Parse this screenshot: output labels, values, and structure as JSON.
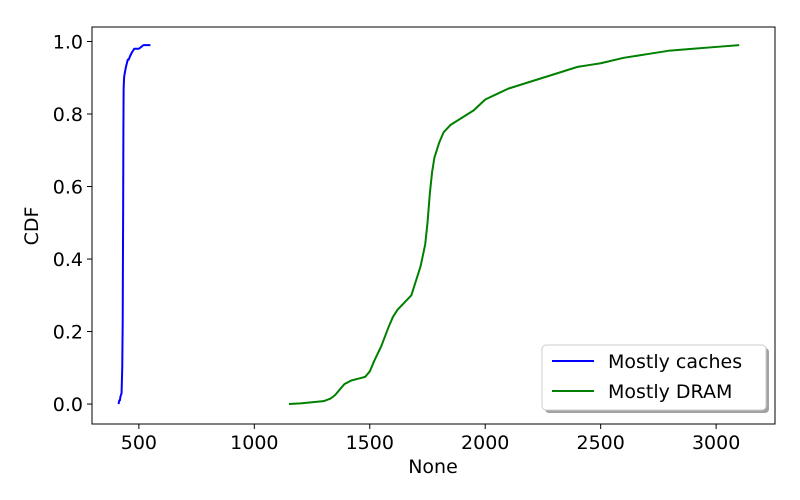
{
  "chart_data": {
    "type": "line",
    "title": "",
    "xlabel": "None",
    "ylabel": "CDF",
    "xlim": [
      297,
      3255
    ],
    "ylim": [
      -0.055,
      1.04
    ],
    "xticks": [
      500,
      1000,
      1500,
      2000,
      2500,
      3000
    ],
    "yticks": [
      0.0,
      0.2,
      0.4,
      0.6,
      0.8,
      1.0
    ],
    "xtick_labels": [
      "500",
      "1000",
      "1500",
      "2000",
      "2500",
      "3000"
    ],
    "ytick_labels": [
      "0.0",
      "0.2",
      "0.4",
      "0.6",
      "0.8",
      "1.0"
    ],
    "grid": false,
    "legend_position": "lower-right",
    "series": [
      {
        "name": "Mostly caches",
        "color": "#0000ff",
        "x": [
          412,
          415,
          418,
          420,
          425,
          428,
          430,
          431,
          432,
          433,
          434,
          436,
          438,
          441,
          444,
          448,
          452,
          456,
          462,
          470,
          480,
          500,
          520,
          550
        ],
        "y": [
          0.0,
          0.01,
          0.01,
          0.02,
          0.03,
          0.1,
          0.23,
          0.4,
          0.55,
          0.76,
          0.87,
          0.9,
          0.91,
          0.92,
          0.93,
          0.94,
          0.95,
          0.95,
          0.96,
          0.97,
          0.98,
          0.98,
          0.99,
          0.99
        ]
      },
      {
        "name": "Mostly DRAM",
        "color": "#008000",
        "x": [
          1150,
          1200,
          1250,
          1300,
          1330,
          1350,
          1370,
          1390,
          1420,
          1450,
          1480,
          1500,
          1520,
          1550,
          1580,
          1600,
          1620,
          1650,
          1680,
          1700,
          1720,
          1740,
          1750,
          1760,
          1770,
          1780,
          1800,
          1820,
          1850,
          1900,
          1950,
          2000,
          2050,
          2100,
          2150,
          2200,
          2250,
          2300,
          2350,
          2400,
          2450,
          2500,
          2600,
          2700,
          2800,
          2900,
          3000,
          3100
        ],
        "y": [
          0.0,
          0.002,
          0.005,
          0.008,
          0.015,
          0.025,
          0.04,
          0.055,
          0.065,
          0.07,
          0.075,
          0.09,
          0.12,
          0.16,
          0.21,
          0.24,
          0.26,
          0.28,
          0.3,
          0.34,
          0.38,
          0.44,
          0.5,
          0.58,
          0.64,
          0.68,
          0.72,
          0.75,
          0.77,
          0.79,
          0.81,
          0.84,
          0.855,
          0.87,
          0.88,
          0.89,
          0.9,
          0.91,
          0.92,
          0.93,
          0.935,
          0.94,
          0.955,
          0.965,
          0.975,
          0.98,
          0.985,
          0.99
        ]
      }
    ]
  }
}
